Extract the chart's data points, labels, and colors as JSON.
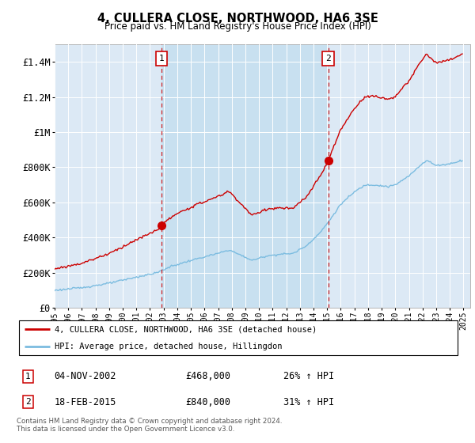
{
  "title": "4, CULLERA CLOSE, NORTHWOOD, HA6 3SE",
  "subtitle": "Price paid vs. HM Land Registry's House Price Index (HPI)",
  "ylim": [
    0,
    1500000
  ],
  "yticks": [
    0,
    200000,
    400000,
    600000,
    800000,
    1000000,
    1200000,
    1400000
  ],
  "background_color": "#ffffff",
  "plot_bg_color": "#dce9f5",
  "grid_color": "#ffffff",
  "purchase1_x": 2002.833,
  "purchase1_price": 468000,
  "purchase2_x": 2015.083,
  "purchase2_price": 840000,
  "legend_entries": [
    "4, CULLERA CLOSE, NORTHWOOD, HA6 3SE (detached house)",
    "HPI: Average price, detached house, Hillingdon"
  ],
  "table_rows": [
    [
      "1",
      "04-NOV-2002",
      "£468,000",
      "26% ↑ HPI"
    ],
    [
      "2",
      "18-FEB-2015",
      "£840,000",
      "31% ↑ HPI"
    ]
  ],
  "footer": "Contains HM Land Registry data © Crown copyright and database right 2024.\nThis data is licensed under the Open Government Licence v3.0.",
  "hpi_color": "#7bbce0",
  "price_color": "#cc0000",
  "vline_color": "#cc0000",
  "shade_color": "#c5dff0",
  "xlim_left": 1995.0,
  "xlim_right": 2025.5
}
